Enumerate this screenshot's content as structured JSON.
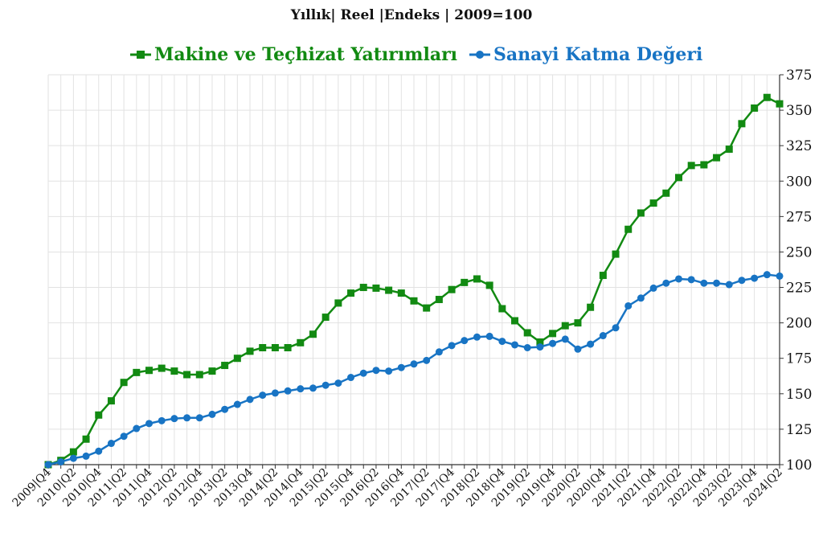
{
  "chart_data": {
    "type": "line",
    "title": "Yıllık| Reel |Endeks | 2009=100",
    "xlabel": "",
    "ylabel": "",
    "ylim": [
      100,
      375
    ],
    "yticks": [
      100,
      125,
      150,
      175,
      200,
      225,
      250,
      275,
      300,
      325,
      350,
      375
    ],
    "grid": true,
    "legend_position": "top",
    "y_axis_side": "right",
    "x_tick_labels": [
      "2009|Q4",
      "2010|Q2",
      "2010|Q4",
      "2011|Q2",
      "2011|Q4",
      "2012|Q2",
      "2012|Q4",
      "2013|Q2",
      "2013|Q4",
      "2014|Q2",
      "2014|Q4",
      "2015|Q2",
      "2015|Q4",
      "2016|Q2",
      "2016|Q4",
      "2017|Q2",
      "2017|Q4",
      "2018|Q2",
      "2018|Q4",
      "2019|Q2",
      "2019|Q4",
      "2020|Q2",
      "2020|Q4",
      "2021|Q2",
      "2021|Q4",
      "2022|Q2",
      "2022|Q4",
      "2023|Q2",
      "2023|Q4",
      "2024|Q2"
    ],
    "series": [
      {
        "name": "Makine ve Teçhizat Yatırımları",
        "color": "#128a12",
        "marker": "square",
        "values": [
          100,
          103,
          109,
          118,
          135,
          145,
          158,
          165,
          166.5,
          168,
          166,
          163.5,
          163.5,
          166,
          170,
          175,
          180,
          182.5,
          182.5,
          182.5,
          186,
          192,
          204,
          214,
          221,
          225,
          224.5,
          223,
          221,
          215.5,
          210.5,
          216.5,
          223.5,
          228.5,
          231,
          226.5,
          210,
          201.5,
          193,
          186.5,
          192.5,
          198,
          200,
          211,
          233.5,
          248.5,
          266,
          277.5,
          284.5,
          291.5,
          302.5,
          311,
          311.5,
          316.5,
          322.5,
          340.5,
          351.5,
          359,
          354.5
        ]
      },
      {
        "name": "Sanayi Katma Değeri",
        "color": "#1874c4",
        "marker": "circle",
        "values": [
          100,
          102,
          104.5,
          106,
          109.5,
          115,
          120,
          125.5,
          129,
          131,
          132.5,
          133,
          133,
          135.5,
          139,
          142.5,
          146,
          149,
          150.5,
          152,
          153.5,
          154,
          156,
          157.5,
          161.5,
          164.5,
          166.5,
          166,
          168.5,
          171,
          173.5,
          179.5,
          184,
          187.5,
          190,
          190.5,
          187,
          184.5,
          182.5,
          183,
          185.5,
          188.5,
          181.5,
          185,
          191,
          196.5,
          212,
          217.5,
          224.5,
          228,
          231,
          230.5,
          228,
          228,
          227,
          230,
          231.5,
          234,
          233
        ]
      }
    ]
  }
}
